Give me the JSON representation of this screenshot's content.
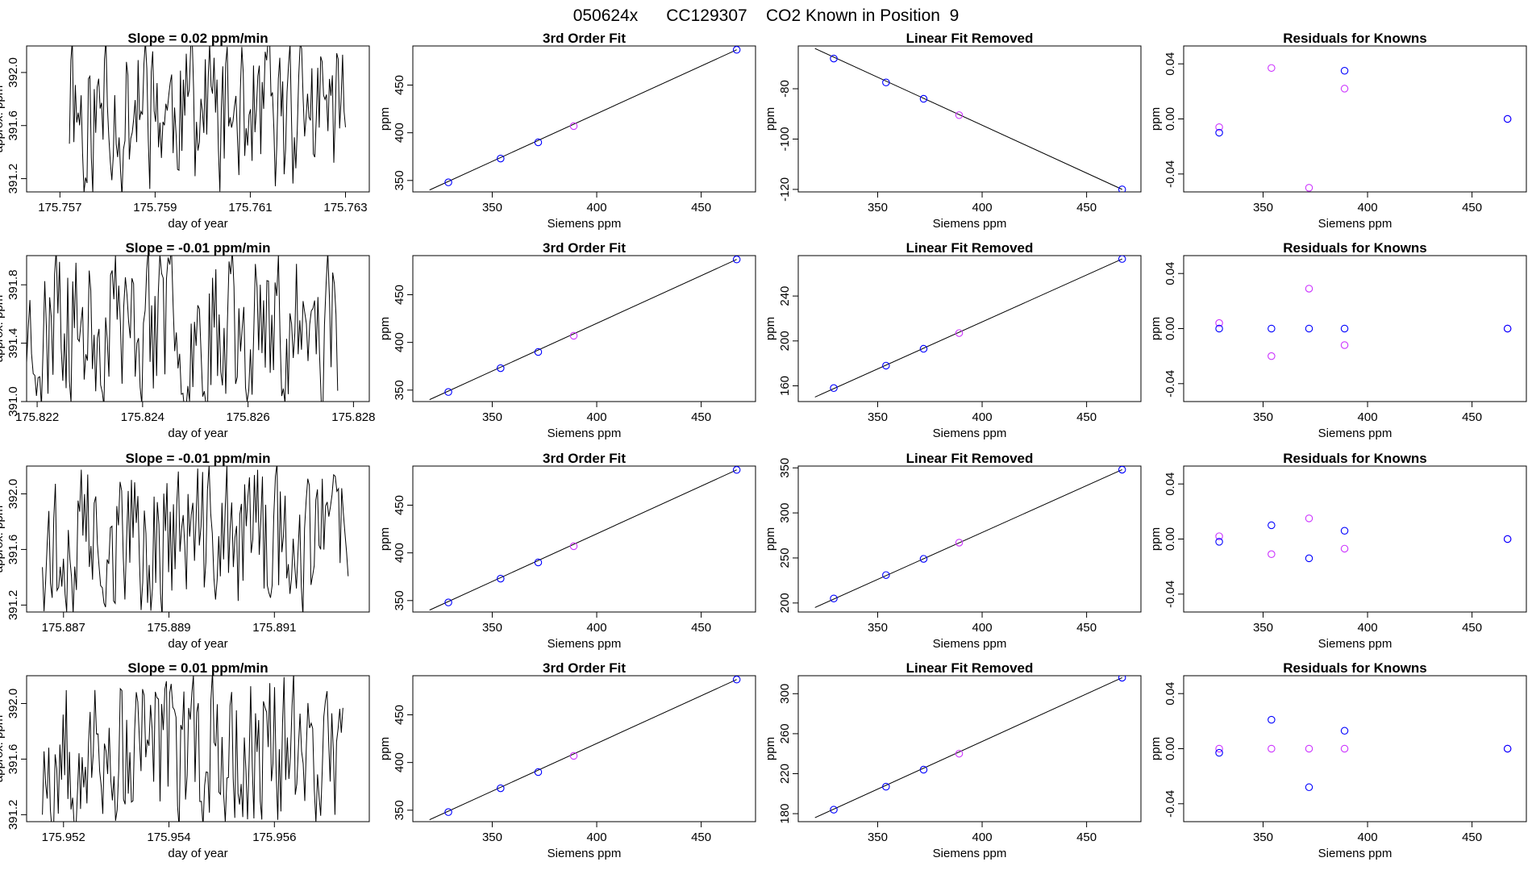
{
  "figure_title": "050624x      CC129307    CO2 Known in Position  9",
  "colors": {
    "measured": "#0000ff",
    "predicted": "#cc33ff",
    "line": "#000000"
  },
  "chart_data": [
    {
      "row": 1,
      "panels": [
        {
          "kind": "timeseries",
          "type": "line",
          "title": "Slope =  0.02  ppm/min",
          "xlabel": "day of year",
          "ylabel": "approx. ppm",
          "xlim": [
            175.7563,
            175.7635
          ],
          "ylim": [
            391.1,
            392.2
          ],
          "xticks": [
            "175.757",
            "175.759",
            "175.761",
            "175.763"
          ],
          "yticks": [
            "391.2",
            "391.6",
            "392.0"
          ],
          "trace": {
            "start": 175.7572,
            "end": 175.763,
            "n": 190,
            "center": 391.7,
            "amp": 0.45,
            "seed": 11
          }
        },
        {
          "kind": "fit",
          "type": "scatter",
          "title": "3rd Order Fit",
          "xlabel": "Siemens ppm",
          "ylabel": "ppm",
          "xlim": [
            312,
            476
          ],
          "ylim": [
            338,
            491
          ],
          "xticks": [
            "350",
            "400",
            "450"
          ],
          "yticks": [
            "350",
            "400",
            "450"
          ],
          "line": [
            [
              320,
              340
            ],
            [
              467,
              487
            ]
          ],
          "points_measured": [
            [
              329,
              348
            ],
            [
              354,
              373
            ],
            [
              372,
              390
            ],
            [
              467,
              487
            ]
          ],
          "points_predicted": [
            [
              389,
              407
            ]
          ]
        },
        {
          "kind": "fit",
          "type": "scatter",
          "title": "Linear Fit Removed",
          "xlabel": "Siemens ppm",
          "ylabel": "ppm",
          "xlim": [
            312,
            476
          ],
          "ylim": [
            -121,
            -63
          ],
          "xticks": [
            "350",
            "400",
            "450"
          ],
          "yticks": [
            "-120",
            "-100",
            "-80"
          ],
          "line": [
            [
              320,
              -64
            ],
            [
              467,
              -120
            ]
          ],
          "points_measured": [
            [
              329,
              -68
            ],
            [
              354,
              -77.5
            ],
            [
              372,
              -84
            ],
            [
              467,
              -120
            ]
          ],
          "points_predicted": [
            [
              389,
              -90.5
            ]
          ]
        },
        {
          "kind": "residuals",
          "type": "scatter",
          "title": "Residuals for Knowns",
          "xlabel": "Siemens ppm",
          "ylabel": "ppm",
          "xlim": [
            312,
            476
          ],
          "ylim": [
            -0.053,
            0.053
          ],
          "xticks": [
            "350",
            "400",
            "450"
          ],
          "yticks": [
            "-0.04",
            "0.00",
            "0.04"
          ],
          "points_measured": [
            [
              329,
              -0.01
            ],
            [
              389,
              0.035
            ],
            [
              467,
              0.0
            ]
          ],
          "points_predicted": [
            [
              329,
              -0.006
            ],
            [
              354,
              0.037
            ],
            [
              372,
              -0.05
            ],
            [
              389,
              0.022
            ],
            [
              467,
              0.0
            ]
          ]
        }
      ]
    },
    {
      "row": 2,
      "panels": [
        {
          "kind": "timeseries",
          "type": "line",
          "title": "Slope =  -0.01  ppm/min",
          "xlabel": "day of year",
          "ylabel": "approx. ppm",
          "xlim": [
            175.8218,
            175.8283
          ],
          "ylim": [
            391.0,
            392.0
          ],
          "xticks": [
            "175.822",
            "175.824",
            "175.826",
            "175.828"
          ],
          "yticks": [
            "391.0",
            "391.4",
            "391.8"
          ],
          "trace": {
            "start": 175.8218,
            "end": 175.8277,
            "n": 190,
            "center": 391.5,
            "amp": 0.45,
            "seed": 23
          }
        },
        {
          "kind": "fit",
          "type": "scatter",
          "title": "3rd Order Fit",
          "xlabel": "Siemens ppm",
          "ylabel": "ppm",
          "xlim": [
            312,
            476
          ],
          "ylim": [
            338,
            491
          ],
          "xticks": [
            "350",
            "400",
            "450"
          ],
          "yticks": [
            "350",
            "400",
            "450"
          ],
          "line": [
            [
              320,
              340
            ],
            [
              467,
              487
            ]
          ],
          "points_measured": [
            [
              329,
              348
            ],
            [
              354,
              373
            ],
            [
              372,
              390
            ],
            [
              467,
              487
            ]
          ],
          "points_predicted": [
            [
              389,
              407
            ]
          ]
        },
        {
          "kind": "fit",
          "type": "scatter",
          "title": "Linear Fit Removed",
          "xlabel": "Siemens ppm",
          "ylabel": "ppm",
          "xlim": [
            312,
            476
          ],
          "ylim": [
            146,
            276
          ],
          "xticks": [
            "350",
            "400",
            "450"
          ],
          "yticks": [
            "160",
            "200",
            "240"
          ],
          "line": [
            [
              320,
              150
            ],
            [
              467,
              273
            ]
          ],
          "points_measured": [
            [
              329,
              158
            ],
            [
              354,
              178
            ],
            [
              372,
              193
            ],
            [
              467,
              273
            ]
          ],
          "points_predicted": [
            [
              389,
              207
            ]
          ]
        },
        {
          "kind": "residuals",
          "type": "scatter",
          "title": "Residuals for Knowns",
          "xlabel": "Siemens ppm",
          "ylabel": "ppm",
          "xlim": [
            312,
            476
          ],
          "ylim": [
            -0.053,
            0.053
          ],
          "xticks": [
            "350",
            "400",
            "450"
          ],
          "yticks": [
            "-0.04",
            "0.00",
            "0.04"
          ],
          "points_measured": [
            [
              329,
              0.0
            ],
            [
              354,
              0.0
            ],
            [
              372,
              0.0
            ],
            [
              389,
              0.0
            ],
            [
              467,
              0.0
            ]
          ],
          "points_predicted": [
            [
              329,
              0.004
            ],
            [
              354,
              -0.02
            ],
            [
              372,
              0.029
            ],
            [
              389,
              -0.012
            ],
            [
              467,
              0.0
            ]
          ]
        }
      ]
    },
    {
      "row": 3,
      "panels": [
        {
          "kind": "timeseries",
          "type": "line",
          "title": "Slope =  -0.01  ppm/min",
          "xlabel": "day of year",
          "ylabel": "approx. ppm",
          "xlim": [
            175.8863,
            175.8928
          ],
          "ylim": [
            391.15,
            392.2
          ],
          "xticks": [
            "175.887",
            "175.889",
            "175.891"
          ],
          "yticks": [
            "391.2",
            "391.6",
            "392.0"
          ],
          "trace": {
            "start": 175.8866,
            "end": 175.8924,
            "n": 190,
            "center": 391.7,
            "amp": 0.45,
            "seed": 37
          }
        },
        {
          "kind": "fit",
          "type": "scatter",
          "title": "3rd Order Fit",
          "xlabel": "Siemens ppm",
          "ylabel": "ppm",
          "xlim": [
            312,
            476
          ],
          "ylim": [
            338,
            491
          ],
          "xticks": [
            "350",
            "400",
            "450"
          ],
          "yticks": [
            "350",
            "400",
            "450"
          ],
          "line": [
            [
              320,
              340
            ],
            [
              467,
              487
            ]
          ],
          "points_measured": [
            [
              329,
              348
            ],
            [
              354,
              373
            ],
            [
              372,
              390
            ],
            [
              467,
              487
            ]
          ],
          "points_predicted": [
            [
              389,
              407
            ]
          ]
        },
        {
          "kind": "fit",
          "type": "scatter",
          "title": "Linear Fit Removed",
          "xlabel": "Siemens ppm",
          "ylabel": "ppm",
          "xlim": [
            312,
            476
          ],
          "ylim": [
            190,
            352
          ],
          "xticks": [
            "350",
            "400",
            "450"
          ],
          "yticks": [
            "200",
            "250",
            "300",
            "350"
          ],
          "line": [
            [
              320,
              195
            ],
            [
              467,
              348
            ]
          ],
          "points_measured": [
            [
              329,
              205
            ],
            [
              354,
              231
            ],
            [
              372,
              249
            ],
            [
              467,
              348
            ]
          ],
          "points_predicted": [
            [
              389,
              267
            ]
          ]
        },
        {
          "kind": "residuals",
          "type": "scatter",
          "title": "Residuals for Knowns",
          "xlabel": "Siemens ppm",
          "ylabel": "ppm",
          "xlim": [
            312,
            476
          ],
          "ylim": [
            -0.053,
            0.053
          ],
          "xticks": [
            "350",
            "400",
            "450"
          ],
          "yticks": [
            "-0.04",
            "0.00",
            "0.04"
          ],
          "points_measured": [
            [
              329,
              -0.002
            ],
            [
              354,
              0.01
            ],
            [
              372,
              -0.014
            ],
            [
              389,
              0.006
            ],
            [
              467,
              0.0
            ]
          ],
          "points_predicted": [
            [
              329,
              0.002
            ],
            [
              354,
              -0.011
            ],
            [
              372,
              0.015
            ],
            [
              389,
              -0.007
            ],
            [
              467,
              0.0
            ]
          ]
        }
      ]
    },
    {
      "row": 4,
      "panels": [
        {
          "kind": "timeseries",
          "type": "line",
          "title": "Slope =  0.01  ppm/min",
          "xlabel": "day of year",
          "ylabel": "approx. ppm",
          "xlim": [
            175.9513,
            175.9578
          ],
          "ylim": [
            391.15,
            392.2
          ],
          "xticks": [
            "175.952",
            "175.954",
            "175.956"
          ],
          "yticks": [
            "391.2",
            "391.6",
            "392.0"
          ],
          "trace": {
            "start": 175.9516,
            "end": 175.9573,
            "n": 190,
            "center": 391.65,
            "amp": 0.45,
            "seed": 53
          }
        },
        {
          "kind": "fit",
          "type": "scatter",
          "title": "3rd Order Fit",
          "xlabel": "Siemens ppm",
          "ylabel": "ppm",
          "xlim": [
            312,
            476
          ],
          "ylim": [
            338,
            491
          ],
          "xticks": [
            "350",
            "400",
            "450"
          ],
          "yticks": [
            "350",
            "400",
            "450"
          ],
          "line": [
            [
              320,
              340
            ],
            [
              467,
              487
            ]
          ],
          "points_measured": [
            [
              329,
              348
            ],
            [
              354,
              373
            ],
            [
              372,
              390
            ],
            [
              467,
              487
            ]
          ],
          "points_predicted": [
            [
              389,
              407
            ]
          ]
        },
        {
          "kind": "fit",
          "type": "scatter",
          "title": "Linear Fit Removed",
          "xlabel": "Siemens ppm",
          "ylabel": "ppm",
          "xlim": [
            312,
            476
          ],
          "ylim": [
            172,
            318
          ],
          "xticks": [
            "350",
            "400",
            "450"
          ],
          "yticks": [
            "180",
            "220",
            "260",
            "300"
          ],
          "line": [
            [
              320,
              176
            ],
            [
              467,
              316
            ]
          ],
          "points_measured": [
            [
              329,
              184
            ],
            [
              354,
              207
            ],
            [
              372,
              224
            ],
            [
              467,
              316
            ]
          ],
          "points_predicted": [
            [
              389,
              240
            ]
          ]
        },
        {
          "kind": "residuals",
          "type": "scatter",
          "title": "Residuals for Knowns",
          "xlabel": "Siemens ppm",
          "ylabel": "ppm",
          "xlim": [
            312,
            476
          ],
          "ylim": [
            -0.053,
            0.053
          ],
          "xticks": [
            "350",
            "400",
            "450"
          ],
          "yticks": [
            "-0.04",
            "0.00",
            "0.04"
          ],
          "points_measured": [
            [
              329,
              -0.003
            ],
            [
              354,
              0.021
            ],
            [
              372,
              -0.028
            ],
            [
              389,
              0.013
            ],
            [
              467,
              0.0
            ]
          ],
          "points_predicted": [
            [
              329,
              0.0
            ],
            [
              354,
              0.0
            ],
            [
              372,
              0.0
            ],
            [
              389,
              0.0
            ],
            [
              467,
              0.0
            ]
          ]
        }
      ]
    }
  ]
}
